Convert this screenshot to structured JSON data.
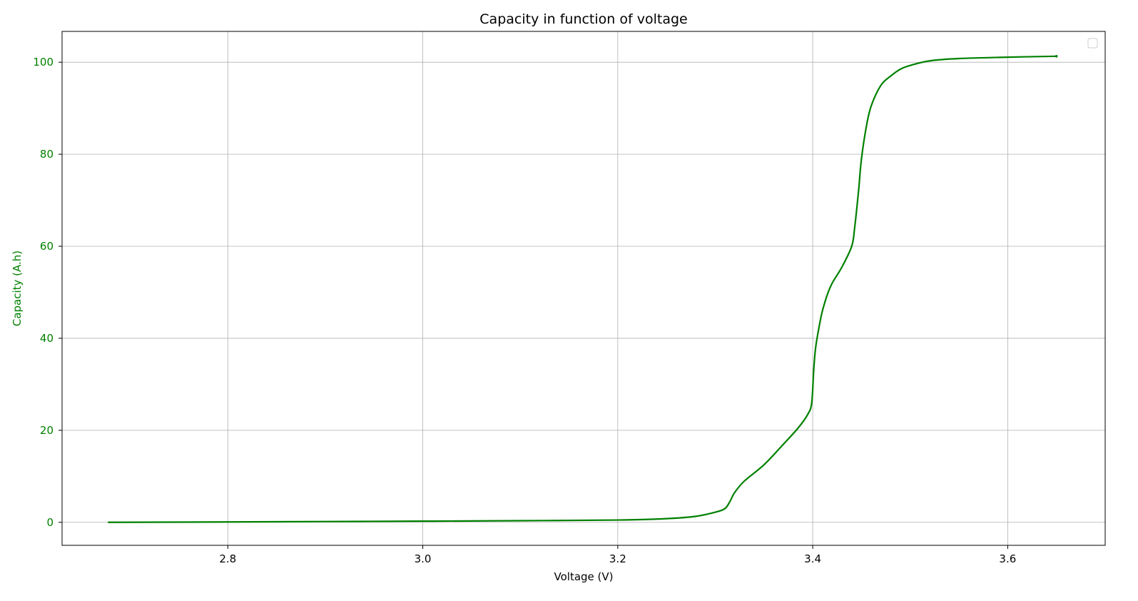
{
  "chart_data": {
    "type": "line",
    "title": "Capacity in function of voltage",
    "xlabel": "Voltage (V)",
    "ylabel": "Capacity (A.h)",
    "xlim": [
      2.63,
      3.7
    ],
    "ylim": [
      -5,
      106.7
    ],
    "x_ticks": [
      2.8,
      3.0,
      3.2,
      3.4,
      3.6
    ],
    "x_tick_labels": [
      "2.8",
      "3.0",
      "3.2",
      "3.4",
      "3.6"
    ],
    "y_ticks": [
      0,
      20,
      40,
      60,
      80,
      100
    ],
    "y_tick_labels": [
      "0",
      "20",
      "40",
      "60",
      "80",
      "100"
    ],
    "grid": true,
    "legend": {
      "placement": "top-right",
      "entries": []
    },
    "colors": {
      "series": "#008000",
      "ylabel": "#008000",
      "yticks": "#008000",
      "grid": "#b0b0b0"
    },
    "series": [
      {
        "x": [
          2.677,
          2.8,
          2.9,
          3.0,
          3.1,
          3.2,
          3.25,
          3.28,
          3.3,
          3.31,
          3.315,
          3.32,
          3.33,
          3.35,
          3.37,
          3.385,
          3.395,
          3.399,
          3.401,
          3.403,
          3.407,
          3.41,
          3.415,
          3.42,
          3.43,
          3.44,
          3.443,
          3.447,
          3.45,
          3.455,
          3.46,
          3.47,
          3.48,
          3.49,
          3.5,
          3.52,
          3.55,
          3.6,
          3.65
        ],
        "y": [
          0.0,
          0.08,
          0.17,
          0.25,
          0.35,
          0.5,
          0.8,
          1.3,
          2.2,
          3.0,
          4.5,
          6.5,
          9.0,
          12.5,
          17.0,
          20.5,
          23.5,
          26.0,
          33.0,
          38.0,
          43.0,
          46.0,
          49.5,
          52.0,
          55.5,
          60.0,
          64.0,
          72.0,
          79.0,
          86.0,
          90.5,
          95.0,
          97.0,
          98.5,
          99.3,
          100.3,
          100.8,
          101.1,
          101.3
        ]
      }
    ]
  }
}
